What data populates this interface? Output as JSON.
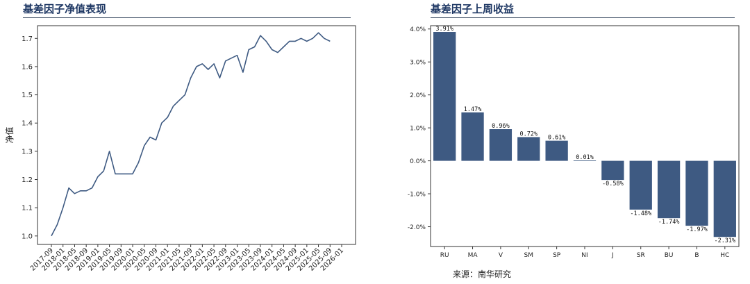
{
  "left_panel": {
    "title": "基差因子净值表现"
  },
  "right_panel": {
    "title": "基差因子上周收益"
  },
  "source": "来源：南华研究",
  "chart_data": [
    {
      "type": "line",
      "title": "基差因子净值表现",
      "xlabel": "",
      "ylabel": "净值",
      "ylim": [
        0.97,
        1.745
      ],
      "yticks": [
        1.0,
        1.1,
        1.2,
        1.3,
        1.4,
        1.5,
        1.6,
        1.7
      ],
      "ytick_labels": [
        "1.0",
        "1.1",
        "1.2",
        "1.3",
        "1.4",
        "1.5",
        "1.6",
        "1.7"
      ],
      "xlim": [
        "2017-09",
        "2026-01"
      ],
      "xticks": [
        "2017-09",
        "2018-01",
        "2018-05",
        "2018-09",
        "2019-01",
        "2019-05",
        "2019-09",
        "2020-01",
        "2020-05",
        "2020-09",
        "2021-01",
        "2021-05",
        "2021-09",
        "2022-01",
        "2022-05",
        "2022-09",
        "2023-01",
        "2023-05",
        "2023-09",
        "2024-01",
        "2024-05",
        "2024-09",
        "2025-01",
        "2025-05",
        "2025-09",
        "2026-01"
      ],
      "line_color": "#3e5a82",
      "series": [
        {
          "x": [
            "2017-09",
            "2017-11",
            "2018-01",
            "2018-03",
            "2018-05",
            "2018-07",
            "2018-09",
            "2018-11",
            "2019-01",
            "2019-03",
            "2019-05",
            "2019-07",
            "2019-09",
            "2019-11",
            "2020-01",
            "2020-03",
            "2020-05",
            "2020-07",
            "2020-09",
            "2020-11",
            "2021-01",
            "2021-03",
            "2021-05",
            "2021-07",
            "2021-09",
            "2021-11",
            "2022-01",
            "2022-03",
            "2022-05",
            "2022-07",
            "2022-09",
            "2022-11",
            "2023-01",
            "2023-03",
            "2023-05",
            "2023-07",
            "2023-09",
            "2023-11",
            "2024-01",
            "2024-03",
            "2024-05",
            "2024-07",
            "2024-09",
            "2024-11",
            "2025-01",
            "2025-03",
            "2025-05",
            "2025-07",
            "2025-09"
          ],
          "values": [
            1.0,
            1.04,
            1.1,
            1.17,
            1.15,
            1.16,
            1.16,
            1.17,
            1.21,
            1.23,
            1.3,
            1.22,
            1.22,
            1.22,
            1.22,
            1.26,
            1.32,
            1.35,
            1.34,
            1.4,
            1.42,
            1.46,
            1.48,
            1.5,
            1.56,
            1.6,
            1.61,
            1.59,
            1.61,
            1.56,
            1.62,
            1.63,
            1.64,
            1.58,
            1.66,
            1.67,
            1.71,
            1.69,
            1.66,
            1.65,
            1.67,
            1.69,
            1.69,
            1.7,
            1.69,
            1.7,
            1.72,
            1.7,
            1.69
          ]
        }
      ]
    },
    {
      "type": "bar",
      "title": "基差因子上周收益",
      "xlabel": "",
      "ylabel": "",
      "ylim": [
        -2.6,
        4.1
      ],
      "yticks": [
        -2.0,
        -1.0,
        0.0,
        1.0,
        2.0,
        3.0,
        4.0
      ],
      "ytick_labels": [
        "-2.0%",
        "-1.0%",
        "0.0%",
        "1.0%",
        "2.0%",
        "3.0%",
        "4.0%"
      ],
      "bar_color": "#3e5a82",
      "categories": [
        "RU",
        "MA",
        "V",
        "SM",
        "SP",
        "NI",
        "J",
        "SR",
        "BU",
        "B",
        "HC"
      ],
      "values": [
        3.91,
        1.47,
        0.96,
        0.72,
        0.61,
        0.01,
        -0.58,
        -1.48,
        -1.74,
        -1.97,
        -2.31
      ],
      "value_labels": [
        "3.91%",
        "1.47%",
        "0.96%",
        "0.72%",
        "0.61%",
        "0.01%",
        "-0.58%",
        "-1.48%",
        "-1.74%",
        "-1.97%",
        "-2.31%"
      ]
    }
  ]
}
